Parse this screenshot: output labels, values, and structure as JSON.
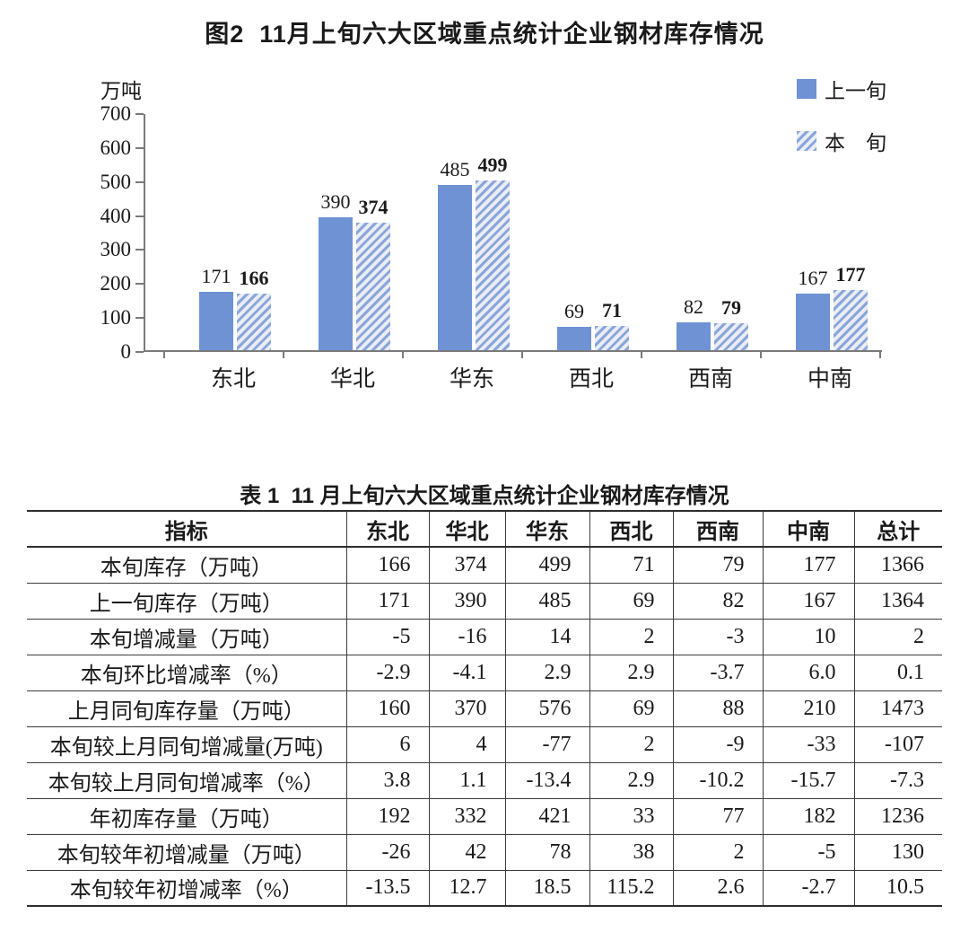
{
  "figure": {
    "title": "图2  11月上旬六大区域重点统计企业钢材库存情况"
  },
  "chart_data": {
    "type": "bar",
    "title": "图2  11月上旬六大区域重点统计企业钢材库存情况",
    "unit_label": "万吨",
    "categories": [
      "东北",
      "华北",
      "华东",
      "西北",
      "西南",
      "中南"
    ],
    "series": [
      {
        "name": "上一旬",
        "pattern": "solid",
        "color": "#6E92D4",
        "values": [
          171,
          390,
          485,
          69,
          82,
          167
        ]
      },
      {
        "name": "本　旬",
        "pattern": "diagonal-hatch",
        "color": "#8BA5DA",
        "values": [
          166,
          374,
          499,
          71,
          79,
          177
        ]
      }
    ],
    "ylim": [
      0,
      700
    ],
    "yticks": [
      700,
      600,
      500,
      400,
      300,
      200,
      100,
      0
    ],
    "grid": false,
    "legend_position": "top-right",
    "value_labels": true
  },
  "table": {
    "title": "表 1  11 月上旬六大区域重点统计企业钢材库存情况",
    "headers": [
      "指标",
      "东北",
      "华北",
      "华东",
      "西北",
      "西南",
      "中南",
      "总计"
    ],
    "rows": [
      [
        "本旬库存（万吨）",
        "166",
        "374",
        "499",
        "71",
        "79",
        "177",
        "1366"
      ],
      [
        "上一旬库存（万吨）",
        "171",
        "390",
        "485",
        "69",
        "82",
        "167",
        "1364"
      ],
      [
        "本旬增减量（万吨）",
        "-5",
        "-16",
        "14",
        "2",
        "-3",
        "10",
        "2"
      ],
      [
        "本旬环比增减率（%）",
        "-2.9",
        "-4.1",
        "2.9",
        "2.9",
        "-3.7",
        "6.0",
        "0.1"
      ],
      [
        "上月同旬库存量（万吨）",
        "160",
        "370",
        "576",
        "69",
        "88",
        "210",
        "1473"
      ],
      [
        "本旬较上月同旬增减量(万吨)",
        "6",
        "4",
        "-77",
        "2",
        "-9",
        "-33",
        "-107"
      ],
      [
        "本旬较上月同旬增减率（%）",
        "3.8",
        "1.1",
        "-13.4",
        "2.9",
        "-10.2",
        "-15.7",
        "-7.3"
      ],
      [
        "年初库存量（万吨）",
        "192",
        "332",
        "421",
        "33",
        "77",
        "182",
        "1236"
      ],
      [
        "本旬较年初增减量（万吨）",
        "-26",
        "42",
        "78",
        "38",
        "2",
        "-5",
        "130"
      ],
      [
        "本旬较年初增减率（%）",
        "-13.5",
        "12.7",
        "18.5",
        "115.2",
        "2.6",
        "-2.7",
        "10.5"
      ]
    ]
  },
  "colors": {
    "bar_solid": "#6E92D4",
    "hatch_stripe": "#8BA5DA",
    "hatch_background": "#E9EDF4",
    "axis_line": "#7a7a7a",
    "table_border": "#3c3c3c",
    "text": "#1a1a1a"
  }
}
